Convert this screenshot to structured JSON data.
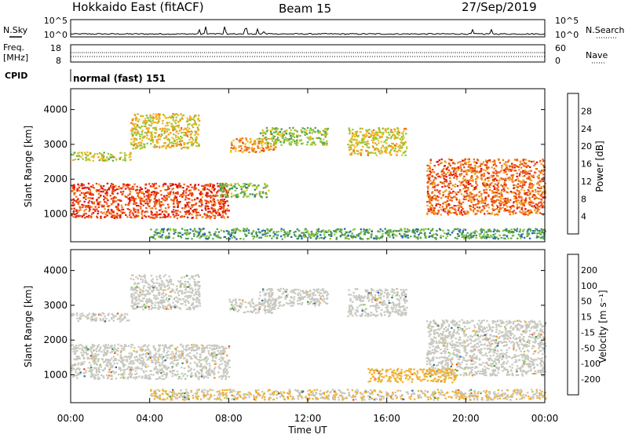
{
  "header": {
    "station": "Hokkaido East (fitACF)",
    "beam": "Beam 15",
    "date": "27/Sep/2019"
  },
  "noise_panel": {
    "left_label": "N.Sky",
    "right_label": "N.Search",
    "left_ticks": [
      "10^5",
      "10^0"
    ],
    "right_ticks": [
      "10^5",
      "10^0"
    ]
  },
  "freq_panel": {
    "left_label_top": "Freq.",
    "left_label_unit": "[MHz]",
    "right_label": "Nave",
    "left_ticks": [
      "18",
      "8"
    ],
    "right_ticks": [
      "60",
      "0"
    ]
  },
  "cpid": {
    "label": "CPID",
    "value": "normal (fast) 151"
  },
  "colors": {
    "power_scale": [
      "#1a1aff",
      "#2060c0",
      "#3a8a5a",
      "#5aa84a",
      "#8ec83a",
      "#e8c020",
      "#f0a020",
      "#f07018",
      "#e84010",
      "#e01010"
    ],
    "velocity_scale": [
      "#e01010",
      "#f05010",
      "#f08a18",
      "#f0b030",
      "#c8c8c0",
      "#c8c8c0",
      "#8fd040",
      "#3a9a3a",
      "#2a6aa0",
      "#2030c0"
    ]
  },
  "chart_data": [
    {
      "type": "heatmap",
      "title": "",
      "quantity": "Power",
      "xlabel": "",
      "ylabel": "Slant Range [km]",
      "x_ticks": [
        "00:00",
        "04:00",
        "08:00",
        "12:00",
        "16:00",
        "20:00",
        "00:00"
      ],
      "x_range_hours": [
        0,
        24
      ],
      "y_ticks": [
        "1000",
        "2000",
        "3000",
        "4000"
      ],
      "ylim_km": [
        200,
        4600
      ],
      "colorbar_label": "Power [dB]",
      "colorbar_ticks": [
        "4",
        "8",
        "12",
        "16",
        "20",
        "24",
        "28"
      ],
      "colorbar_range": [
        0,
        32
      ],
      "grid": false,
      "regions": [
        {
          "t": [
            0.0,
            8.0
          ],
          "r": [
            900,
            1900
          ],
          "level": 27,
          "note_level": "strong"
        },
        {
          "t": [
            0.0,
            3.0
          ],
          "r": [
            2550,
            2800
          ],
          "level": 16
        },
        {
          "t": [
            3.0,
            6.5
          ],
          "r": [
            2900,
            3900
          ],
          "level": 18
        },
        {
          "t": [
            8.0,
            10.5
          ],
          "r": [
            2800,
            3200
          ],
          "level": 22
        },
        {
          "t": [
            9.5,
            13.0
          ],
          "r": [
            3000,
            3500
          ],
          "level": 14
        },
        {
          "t": [
            7.5,
            10.0
          ],
          "r": [
            1500,
            1900
          ],
          "level": 12
        },
        {
          "t": [
            14.0,
            17.0
          ],
          "r": [
            2700,
            3500
          ],
          "level": 18
        },
        {
          "t": [
            18.0,
            24.0
          ],
          "r": [
            1000,
            2600
          ],
          "level": 25
        },
        {
          "t": [
            4.0,
            24.0
          ],
          "r": [
            300,
            600
          ],
          "level": 10
        }
      ]
    },
    {
      "type": "heatmap",
      "title": "",
      "quantity": "Velocity",
      "xlabel": "Time UT",
      "ylabel": "Slant Range [km]",
      "x_ticks": [
        "00:00",
        "04:00",
        "08:00",
        "12:00",
        "16:00",
        "20:00",
        "00:00"
      ],
      "x_range_hours": [
        0,
        24
      ],
      "y_ticks": [
        "1000",
        "2000",
        "3000",
        "4000"
      ],
      "ylim_km": [
        200,
        4600
      ],
      "colorbar_label": "Velocity [m s⁻¹]",
      "colorbar_ticks": [
        "200",
        "100",
        "50",
        "15",
        "-15",
        "-50",
        "-100",
        "-200"
      ],
      "colorbar_range": [
        -250,
        250
      ],
      "grid": false,
      "regions": [
        {
          "t": [
            0.0,
            8.0
          ],
          "r": [
            900,
            1900
          ],
          "level": 0
        },
        {
          "t": [
            0.0,
            3.0
          ],
          "r": [
            2550,
            2800
          ],
          "level": 0
        },
        {
          "t": [
            3.0,
            6.5
          ],
          "r": [
            2900,
            3900
          ],
          "level": 0
        },
        {
          "t": [
            8.0,
            10.5
          ],
          "r": [
            2800,
            3200
          ],
          "level": 0
        },
        {
          "t": [
            9.5,
            13.0
          ],
          "r": [
            3000,
            3500
          ],
          "level": 0
        },
        {
          "t": [
            14.0,
            17.0
          ],
          "r": [
            2700,
            3500
          ],
          "level": 0
        },
        {
          "t": [
            18.0,
            24.0
          ],
          "r": [
            1000,
            2600
          ],
          "level": 0
        },
        {
          "t": [
            15.0,
            19.5
          ],
          "r": [
            800,
            1200
          ],
          "level": 70
        },
        {
          "t": [
            4.0,
            24.0
          ],
          "r": [
            300,
            600
          ],
          "level": 50
        }
      ]
    }
  ]
}
